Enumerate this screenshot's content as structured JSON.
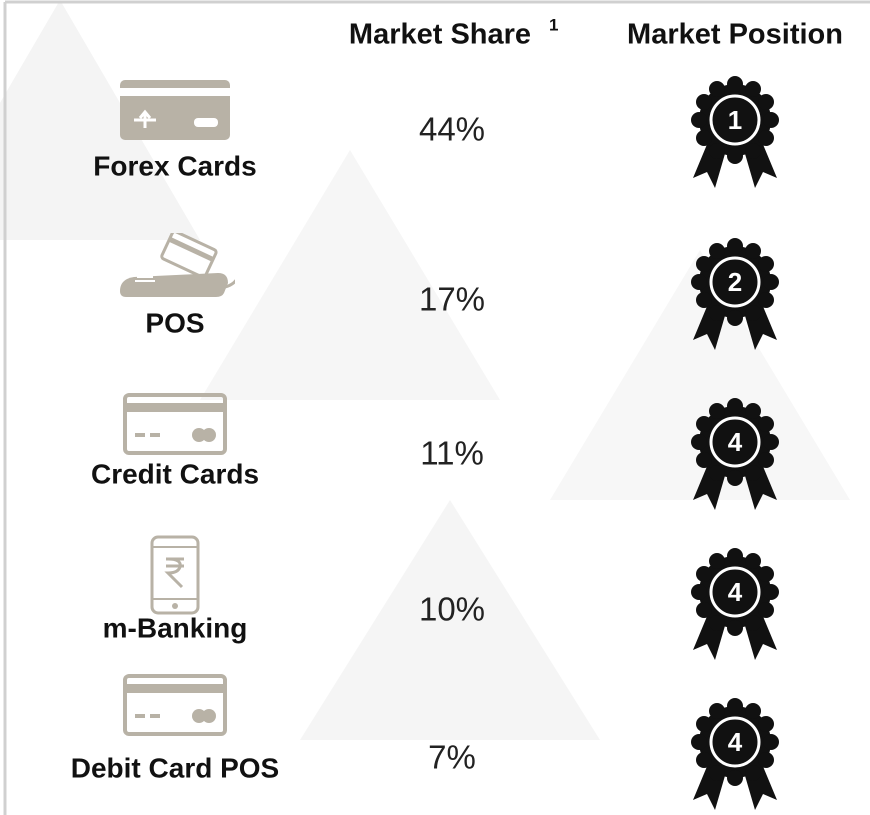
{
  "header": {
    "market_share": "Market Share",
    "footnote_mark": "1",
    "market_position": "Market Position"
  },
  "rows": [
    {
      "label": "Forex Cards",
      "market_share": "44%",
      "market_position": "1",
      "icon": "forex"
    },
    {
      "label": "POS",
      "market_share": "17%",
      "market_position": "2",
      "icon": "pos"
    },
    {
      "label": "Credit Cards",
      "market_share": "11%",
      "market_position": "4",
      "icon": "card"
    },
    {
      "label": "m-Banking",
      "market_share": "10%",
      "market_position": "4",
      "icon": "phone"
    },
    {
      "label": "Debit Card POS",
      "market_share": "7%",
      "market_position": "4",
      "icon": "card"
    }
  ]
}
